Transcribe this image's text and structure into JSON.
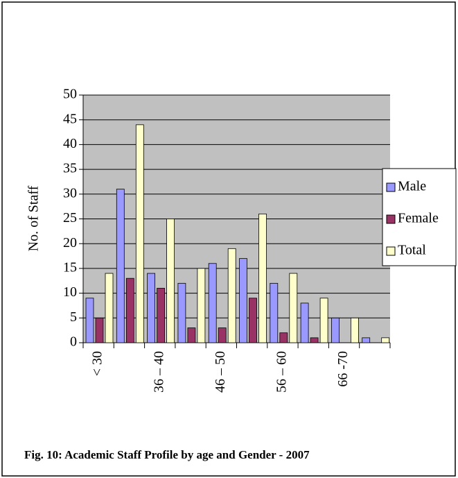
{
  "chart_data": {
    "type": "bar",
    "caption": "Fig. 10: Academic Staff Profile by age and Gender - 2007",
    "ylabel": "No. of Staff",
    "categories": [
      "< 30",
      null,
      "36 – 40",
      null,
      "46 – 50",
      null,
      "56 – 60",
      null,
      "66 -70",
      null
    ],
    "series": [
      {
        "name": "Male",
        "color": "#9999ff",
        "values": [
          9,
          31,
          14,
          12,
          16,
          17,
          12,
          8,
          5,
          1
        ]
      },
      {
        "name": "Female",
        "color": "#993366",
        "values": [
          5,
          13,
          11,
          3,
          3,
          9,
          2,
          1,
          0,
          0
        ]
      },
      {
        "name": "Total",
        "color": "#ffffcc",
        "values": [
          14,
          44,
          25,
          15,
          19,
          26,
          14,
          9,
          5,
          1
        ]
      }
    ],
    "ylim": [
      0,
      50
    ],
    "yticks": [
      0,
      5,
      10,
      15,
      20,
      25,
      30,
      35,
      40,
      45,
      50
    ],
    "grid": true,
    "plot_background": "#c0c0c0",
    "legend": "right"
  }
}
